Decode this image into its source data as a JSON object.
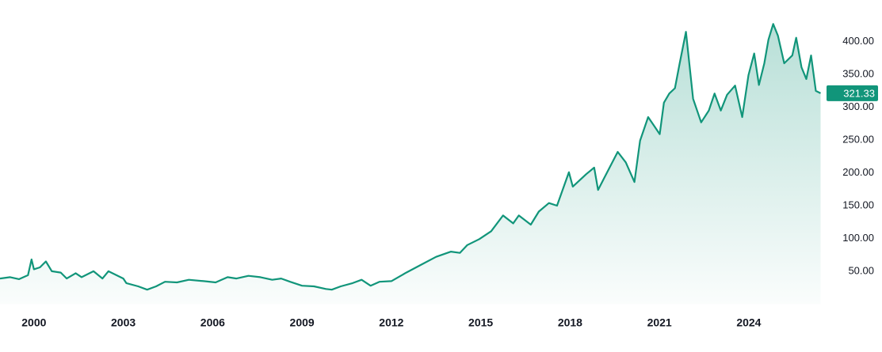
{
  "chart_data": {
    "type": "area",
    "color": "#11957a",
    "x": [
      1998.86,
      1999.2,
      1999.5,
      1999.8,
      1999.92,
      2000.0,
      2000.2,
      2000.4,
      2000.6,
      2000.9,
      2001.1,
      2001.4,
      2001.6,
      2002.0,
      2002.3,
      2002.5,
      2003.0,
      2003.1,
      2003.5,
      2003.8,
      2004.1,
      2004.4,
      2004.8,
      2005.2,
      2005.7,
      2006.1,
      2006.5,
      2006.8,
      2007.2,
      2007.6,
      2008.0,
      2008.3,
      2008.6,
      2009.0,
      2009.4,
      2009.8,
      2010.0,
      2010.3,
      2010.7,
      2011.0,
      2011.3,
      2011.6,
      2012.0,
      2012.5,
      2013.0,
      2013.5,
      2014.0,
      2014.3,
      2014.55,
      2014.95,
      2015.35,
      2015.75,
      2016.09,
      2016.28,
      2016.68,
      2016.95,
      2017.29,
      2017.56,
      2017.96,
      2018.09,
      2018.54,
      2018.81,
      2018.94,
      2019.21,
      2019.6,
      2019.87,
      2020.16,
      2020.35,
      2020.62,
      2020.83,
      2021.01,
      2021.15,
      2021.33,
      2021.52,
      2021.68,
      2021.89,
      2022.13,
      2022.4,
      2022.66,
      2022.85,
      2023.06,
      2023.27,
      2023.54,
      2023.78,
      2023.99,
      2024.18,
      2024.34,
      2024.52,
      2024.66,
      2024.82,
      2024.98,
      2025.19,
      2025.46,
      2025.59,
      2025.77,
      2025.93,
      2026.09,
      2026.25,
      2026.41
    ],
    "values": [
      39,
      41,
      38,
      44,
      68,
      53,
      56,
      65,
      50,
      48,
      39,
      47,
      41,
      50,
      39,
      50,
      39,
      32,
      27,
      22,
      27,
      34,
      33,
      37,
      35,
      33,
      41,
      39,
      43,
      41,
      37,
      39,
      34,
      28,
      27,
      23,
      22,
      27,
      32,
      37,
      28,
      34,
      35,
      48,
      60,
      72,
      80,
      78,
      90,
      99,
      111,
      135,
      123,
      135,
      121,
      141,
      154,
      150,
      201,
      179,
      198,
      208,
      174,
      198,
      232,
      216,
      186,
      249,
      285,
      271,
      259,
      307,
      321,
      329,
      367,
      415,
      313,
      277,
      295,
      321,
      295,
      319,
      333,
      285,
      349,
      382,
      334,
      367,
      403,
      427,
      409,
      367,
      379,
      406,
      361,
      343,
      379,
      325,
      321.33
    ],
    "last_value": 321.33,
    "xlim": [
      1998.86,
      2026.45
    ],
    "ylim": [
      0,
      463.5
    ],
    "xticks": [
      2000,
      2003,
      2006,
      2009,
      2012,
      2015,
      2018,
      2021,
      2024
    ],
    "yticks": [
      {
        "value": 50,
        "label": "50.00"
      },
      {
        "value": 100,
        "label": "100.00"
      },
      {
        "value": 150,
        "label": "150.00"
      },
      {
        "value": 200,
        "label": "200.00"
      },
      {
        "value": 250,
        "label": "250.00"
      },
      {
        "value": 300,
        "label": "300.00"
      },
      {
        "value": 350,
        "label": "350.00"
      },
      {
        "value": 400,
        "label": "400.00"
      }
    ]
  }
}
